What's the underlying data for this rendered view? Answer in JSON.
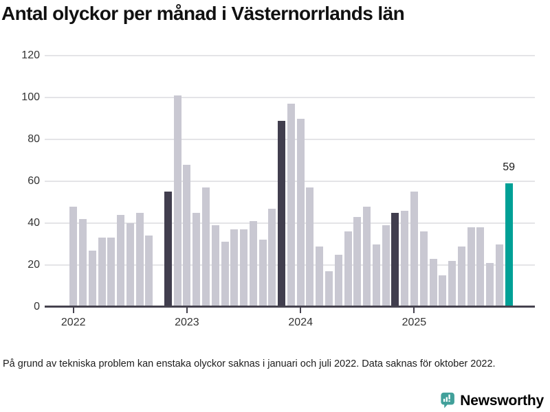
{
  "title": "Antal olyckor per månad i Västernorrlands län",
  "footnote": "På grund av tekniska problem kan enstaka olyckor saknas i januari och juli 2022. Data saknas för oktober 2022.",
  "logo": {
    "text": "Newsworthy",
    "icon": "newsworthy-speech-bubble-barchart-icon"
  },
  "colors": {
    "bar": "#c9c8d2",
    "highlight_bar": "#413e4e",
    "accent_bar": "#00a096",
    "gridline": "#e4e4e7",
    "axis": "#45424e",
    "logo_teal": "#41a09a",
    "text": "#111111"
  },
  "chart_data": {
    "type": "bar",
    "title": "Antal olyckor per månad i Västernorrlands län",
    "xlabel": "",
    "ylabel": "",
    "ylim": [
      0,
      120
    ],
    "yticks": [
      0,
      20,
      40,
      60,
      80,
      100,
      120
    ],
    "grid": true,
    "legend": "none",
    "x_unit": "month",
    "note": "null value = missing data (oktober 2022)",
    "series": [
      {
        "year": 2022,
        "values": [
          48,
          42,
          27,
          33,
          33,
          44,
          40,
          45,
          34,
          null,
          55,
          101
        ]
      },
      {
        "year": 2023,
        "values": [
          68,
          45,
          57,
          39,
          31,
          37,
          37,
          41,
          32,
          47,
          89,
          97
        ]
      },
      {
        "year": 2024,
        "values": [
          90,
          57,
          29,
          17,
          25,
          36,
          43,
          48,
          30,
          39,
          45,
          46
        ]
      },
      {
        "year": 2025,
        "values": [
          55,
          36,
          23,
          15,
          22,
          29,
          38,
          38,
          21,
          30,
          59
        ]
      }
    ],
    "highlight_months": [
      "2022-11",
      "2023-11",
      "2024-11"
    ],
    "accent_month": "2025-11",
    "accent_label": "59",
    "xtick_years": [
      2022,
      2023,
      2024,
      2025
    ]
  }
}
